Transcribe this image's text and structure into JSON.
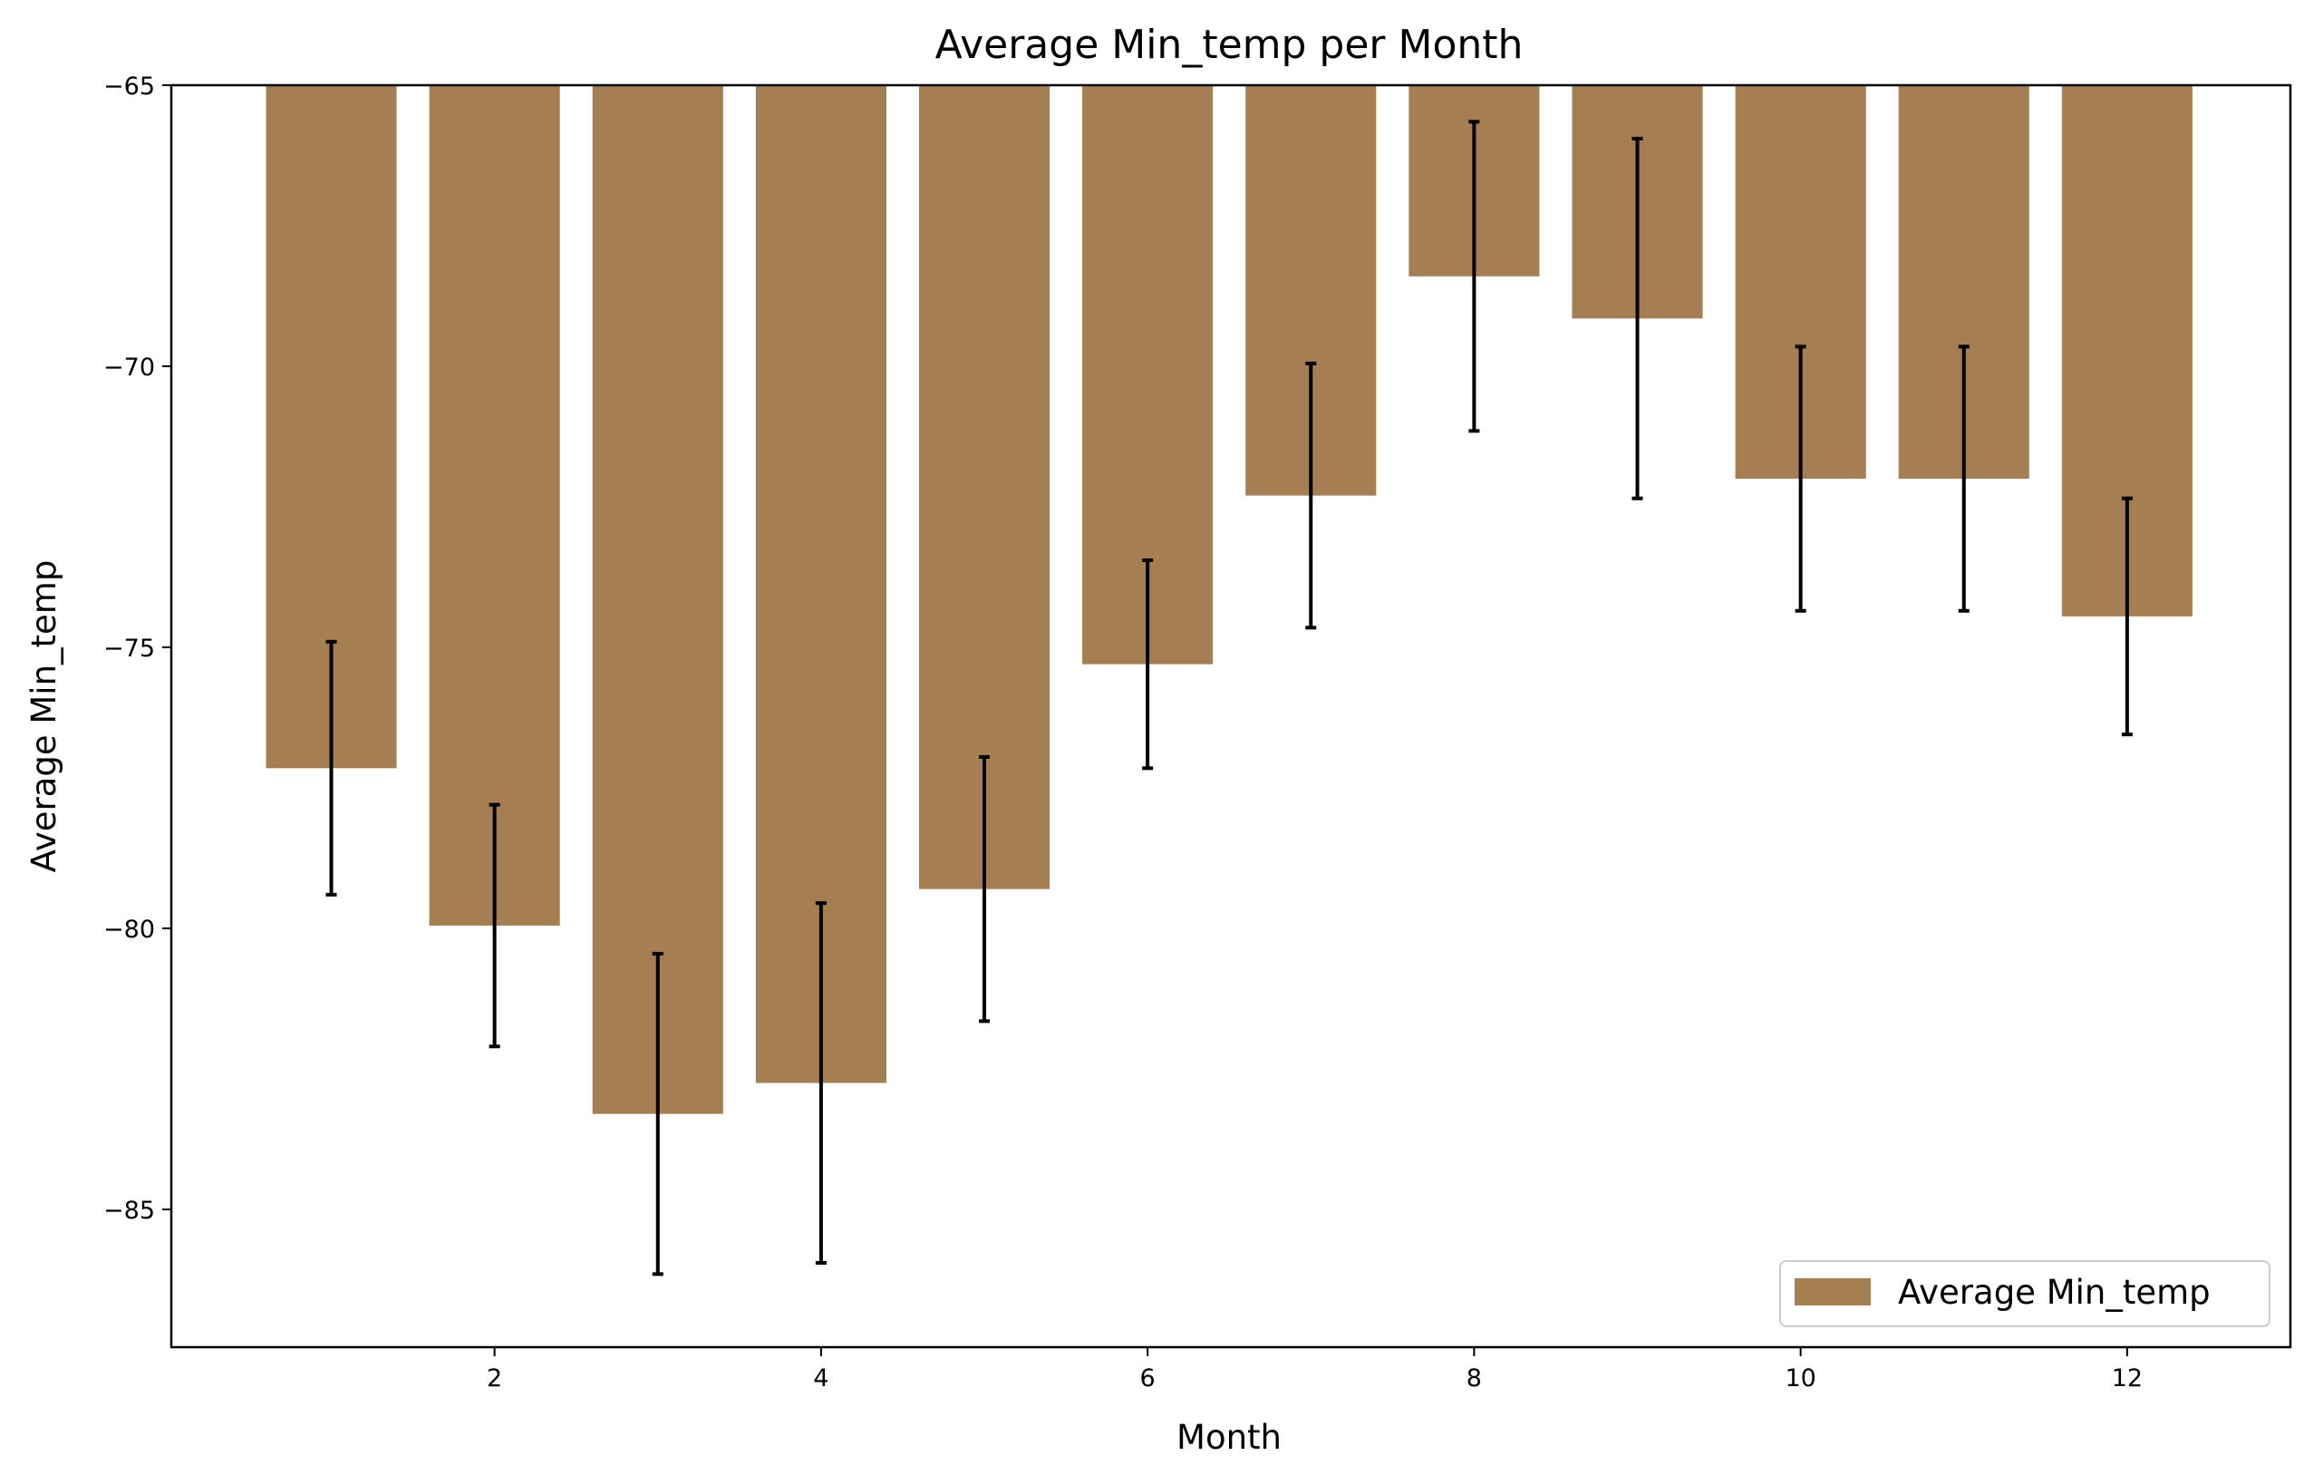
{
  "chart_data": {
    "type": "bar",
    "title": "Average Min_temp per Month",
    "xlabel": "Month",
    "ylabel": "Average Min_temp",
    "xlim": [
      0.02,
      13.0
    ],
    "ylim": [
      -87.45,
      -65
    ],
    "y_inverted_baseline": -65,
    "xticks": [
      {
        "value": 2,
        "label": "2"
      },
      {
        "value": 4,
        "label": "4"
      },
      {
        "value": 6,
        "label": "6"
      },
      {
        "value": 8,
        "label": "8"
      },
      {
        "value": 10,
        "label": "10"
      },
      {
        "value": 12,
        "label": "12"
      }
    ],
    "yticks": [
      {
        "value": -65,
        "label": "−65"
      },
      {
        "value": -70,
        "label": "−70"
      },
      {
        "value": -75,
        "label": "−75"
      },
      {
        "value": -80,
        "label": "−80"
      },
      {
        "value": -85,
        "label": "−85"
      }
    ],
    "grid": false,
    "legend_position": "lower-right",
    "series": [
      {
        "name": "Average Min_temp",
        "color": "#a57f51",
        "x": [
          1,
          2,
          3,
          4,
          5,
          6,
          7,
          8,
          9,
          10,
          11,
          12
        ],
        "values": [
          -77.15,
          -79.95,
          -83.3,
          -82.75,
          -79.3,
          -75.3,
          -72.3,
          -68.4,
          -69.15,
          -72.0,
          -72.0,
          -74.45
        ],
        "error": [
          2.25,
          2.15,
          2.85,
          3.2,
          2.35,
          1.85,
          2.35,
          2.75,
          3.2,
          2.35,
          2.35,
          2.1
        ]
      }
    ],
    "error_bar_color": "#000000"
  }
}
